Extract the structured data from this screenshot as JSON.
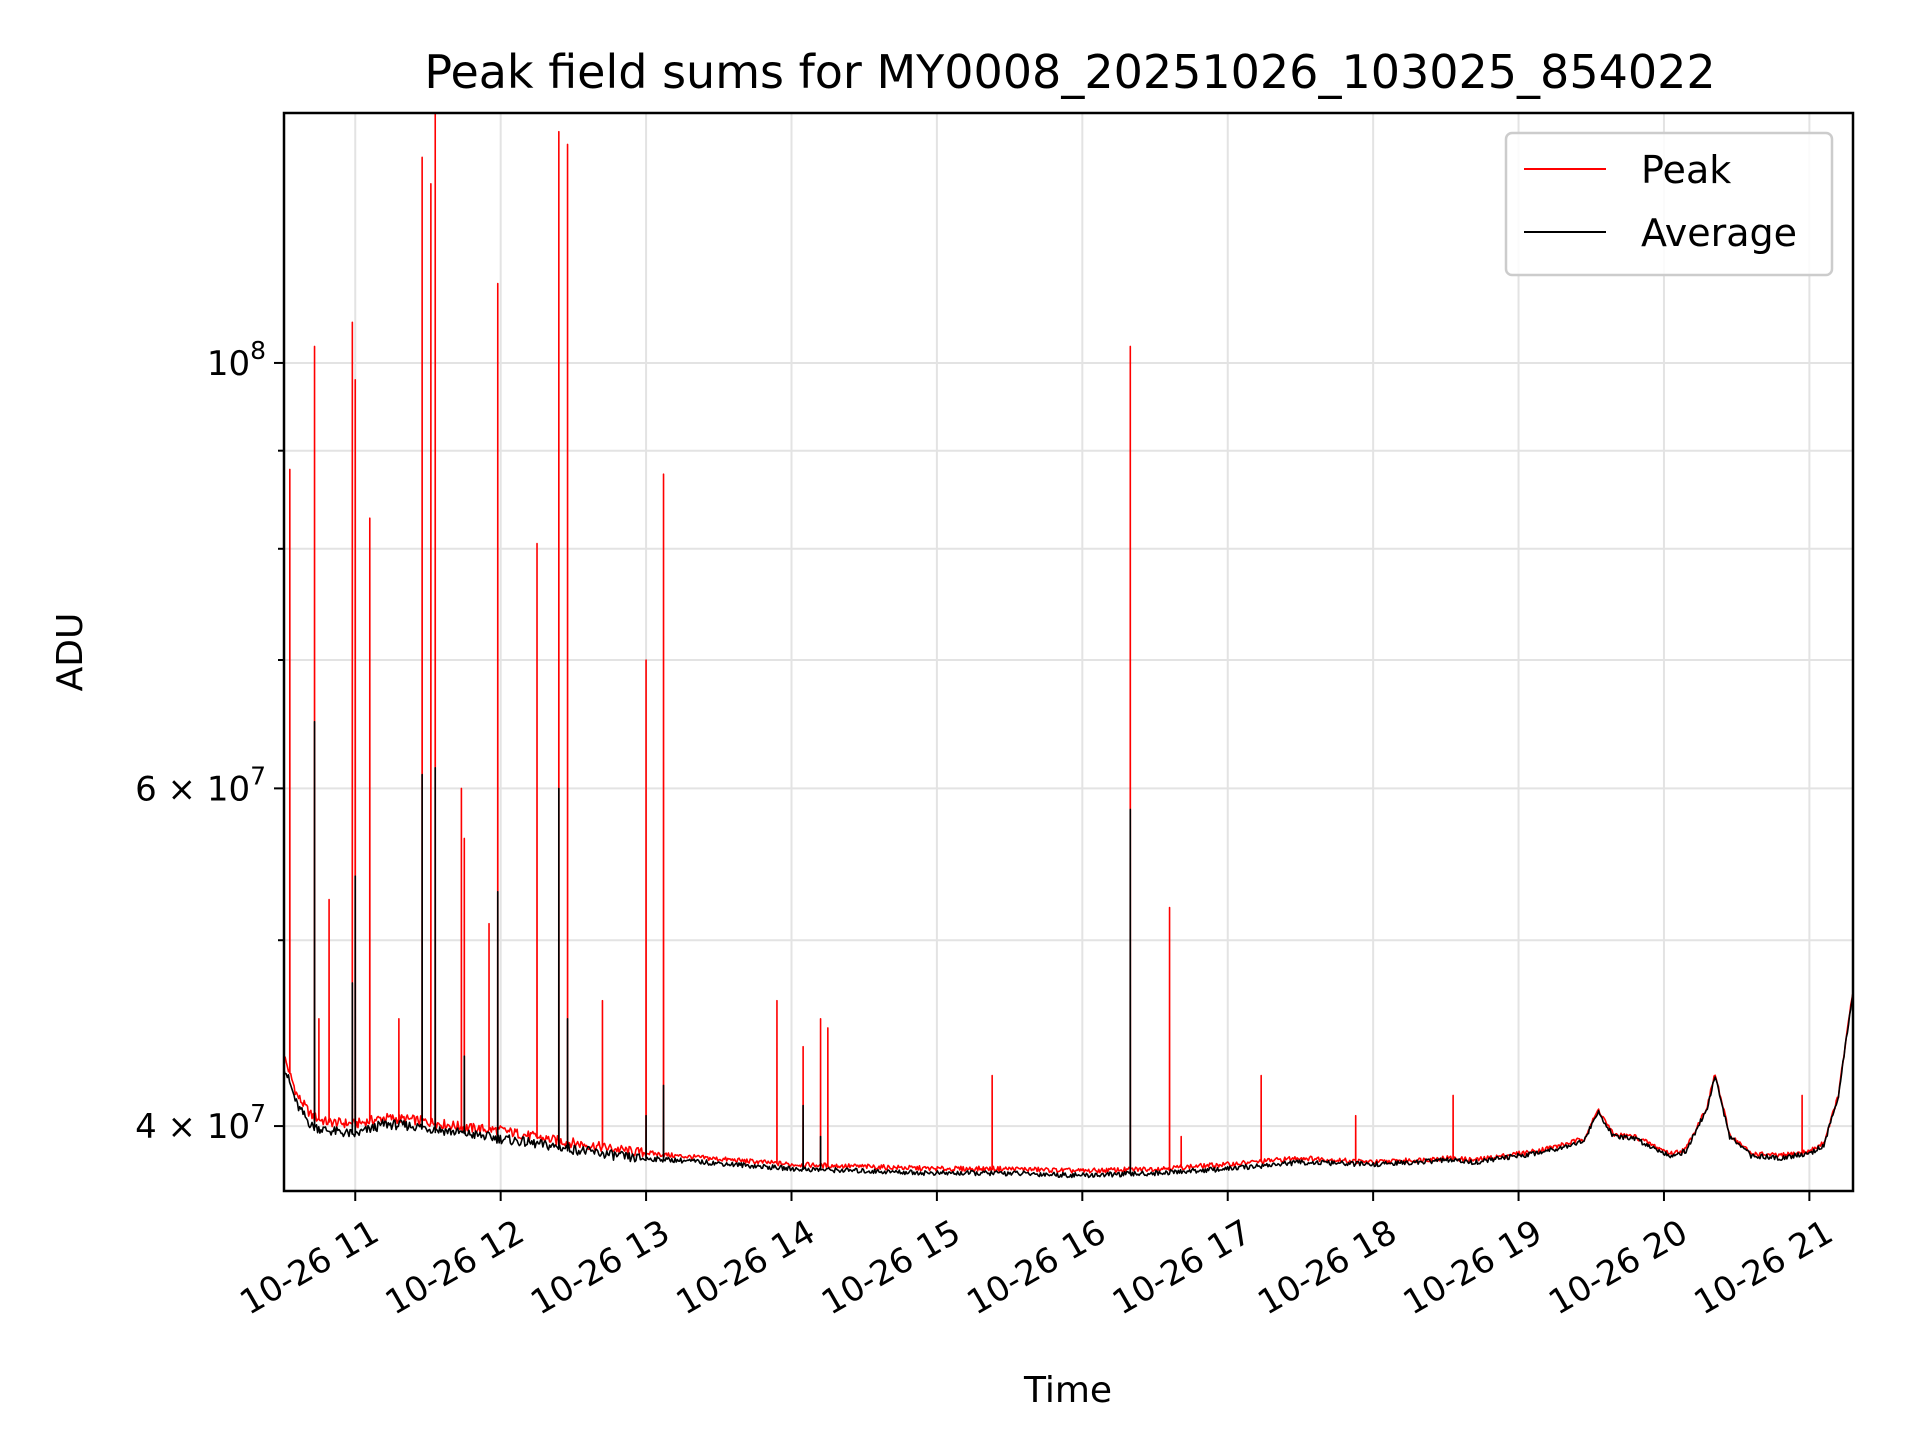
{
  "chart_data": {
    "type": "line",
    "title": "Peak field sums for MY0008_20251026_103025_854022",
    "xlabel": "Time",
    "ylabel": "ADU",
    "y_scale": "log",
    "ylim": [
      37000000,
      135000000
    ],
    "xlim_hours": [
      10.51,
      21.3
    ],
    "grid": true,
    "legend_location": "top-right",
    "x_ticks": [
      {
        "value": 11,
        "label": "10-26 11"
      },
      {
        "value": 12,
        "label": "10-26 12"
      },
      {
        "value": 13,
        "label": "10-26 13"
      },
      {
        "value": 14,
        "label": "10-26 14"
      },
      {
        "value": 15,
        "label": "10-26 15"
      },
      {
        "value": 16,
        "label": "10-26 16"
      },
      {
        "value": 17,
        "label": "10-26 17"
      },
      {
        "value": 18,
        "label": "10-26 18"
      },
      {
        "value": 19,
        "label": "10-26 19"
      },
      {
        "value": 20,
        "label": "10-26 20"
      },
      {
        "value": 21,
        "label": "10-26 21"
      }
    ],
    "y_major_ticks": [
      {
        "value": 40000000,
        "mantissa": "4",
        "exponent": "7"
      },
      {
        "value": 60000000,
        "mantissa": "6",
        "exponent": "7"
      },
      {
        "value": 100000000,
        "mantissa": "10",
        "exponent": "8"
      }
    ],
    "y_minor_ticks": [
      50000000,
      70000000,
      80000000,
      90000000
    ],
    "baseline_hours": [
      10.51,
      10.6,
      10.7,
      10.8,
      11.0,
      11.2,
      11.4,
      11.6,
      11.8,
      12.0,
      12.3,
      12.6,
      12.9,
      13.2,
      13.6,
      14.0,
      14.5,
      15.0,
      15.5,
      16.0,
      16.5,
      17.0,
      17.5,
      18.0,
      18.3,
      18.5,
      18.7,
      18.9,
      19.1,
      19.3,
      19.45,
      19.55,
      19.65,
      19.8,
      19.95,
      20.05,
      20.15,
      20.3,
      20.35,
      20.45,
      20.6,
      20.8,
      21.0,
      21.1,
      21.2,
      21.3
    ],
    "series": [
      {
        "name": "Peak",
        "color": "#ff0000",
        "baseline": [
          43500000,
          41500000,
          40500000,
          40200000,
          40100000,
          40400000,
          40300000,
          40100000,
          39900000,
          39800000,
          39400000,
          39100000,
          38800000,
          38600000,
          38400000,
          38200000,
          38100000,
          38000000,
          38000000,
          37900000,
          38000000,
          38200000,
          38500000,
          38300000,
          38400000,
          38500000,
          38400000,
          38600000,
          38800000,
          39100000,
          39400000,
          40800000,
          39600000,
          39500000,
          39000000,
          38700000,
          38900000,
          41000000,
          42600000,
          39600000,
          38700000,
          38600000,
          38800000,
          39200000,
          41500000,
          47000000
        ],
        "spike_hours": [
          10.55,
          10.72,
          10.75,
          10.82,
          10.98,
          11.0,
          11.1,
          11.3,
          11.46,
          11.52,
          11.55,
          11.73,
          11.75,
          11.92,
          11.98,
          12.25,
          12.4,
          12.46,
          12.7,
          13.0,
          13.12,
          13.9,
          14.08,
          14.2,
          14.25,
          15.38,
          16.33,
          16.6,
          16.68,
          17.23,
          17.88,
          18.55,
          20.95
        ],
        "spike_values": [
          88000000,
          102000000,
          45500000,
          52500000,
          105000000,
          98000000,
          83000000,
          45500000,
          128000000,
          124000000,
          135000000,
          60000000,
          56500000,
          51000000,
          110000000,
          80500000,
          132000000,
          130000000,
          46500000,
          70000000,
          87500000,
          46500000,
          44000000,
          45500000,
          45000000,
          42500000,
          102000000,
          52000000,
          39500000,
          42500000,
          40500000,
          41500000,
          41500000
        ]
      },
      {
        "name": "Average",
        "color": "#000000",
        "baseline": [
          43000000,
          41000000,
          40000000,
          39800000,
          39600000,
          40100000,
          40000000,
          39800000,
          39600000,
          39400000,
          39100000,
          38800000,
          38500000,
          38400000,
          38200000,
          38000000,
          37900000,
          37800000,
          37800000,
          37700000,
          37800000,
          38000000,
          38300000,
          38200000,
          38300000,
          38400000,
          38300000,
          38500000,
          38700000,
          39000000,
          39300000,
          40700000,
          39500000,
          39400000,
          38900000,
          38600000,
          38800000,
          40900000,
          42500000,
          39500000,
          38600000,
          38500000,
          38700000,
          39100000,
          41400000,
          47000000
        ],
        "spike_hours": [
          10.72,
          10.98,
          11.0,
          11.46,
          11.55,
          11.75,
          11.98,
          12.4,
          12.46,
          13.0,
          13.12,
          14.08,
          14.2,
          16.33
        ],
        "spike_values": [
          65000000,
          47500000,
          54000000,
          61000000,
          61500000,
          43500000,
          53000000,
          60000000,
          45500000,
          40500000,
          42000000,
          41000000,
          39500000,
          58500000
        ]
      }
    ]
  }
}
